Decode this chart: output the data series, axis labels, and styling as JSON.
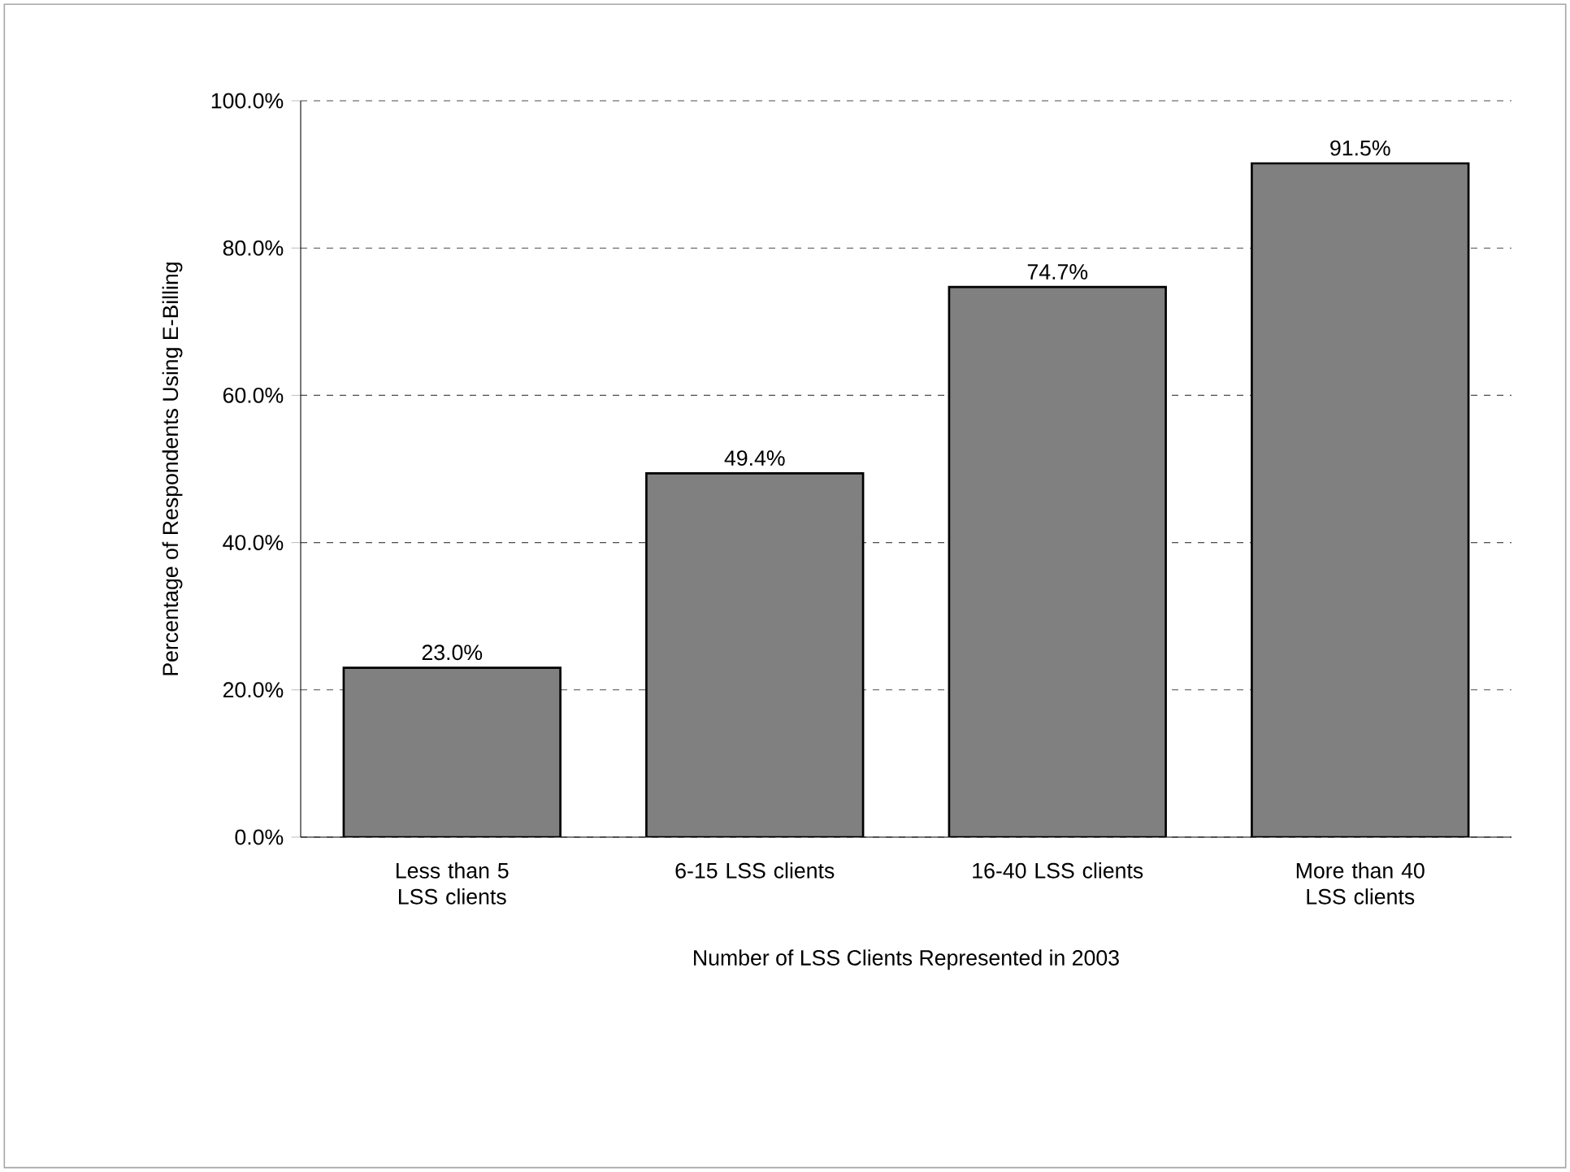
{
  "chart_data": {
    "type": "bar",
    "xlabel": "Number of LSS Clients Represented in 2003",
    "ylabel": "Percentage of Respondents Using E-Billing",
    "categories": [
      "Less than 5 LSS clients",
      "6-15 LSS clients",
      "16-40 LSS clients",
      "More than 40 LSS clients"
    ],
    "values": [
      23.0,
      49.4,
      74.7,
      91.5
    ],
    "value_labels": [
      "23.0%",
      "49.4%",
      "74.7%",
      "91.5%"
    ],
    "color": "#808080",
    "ylim": [
      0,
      100
    ],
    "yticks": [
      {
        "value": 0,
        "label": "0.0%"
      },
      {
        "value": 20,
        "label": "20.0%"
      },
      {
        "value": 40,
        "label": "40.0%"
      },
      {
        "value": 60,
        "label": "60.0%"
      },
      {
        "value": 80,
        "label": "80.0%"
      },
      {
        "value": 100,
        "label": "100.0%"
      }
    ],
    "grid": "y"
  }
}
